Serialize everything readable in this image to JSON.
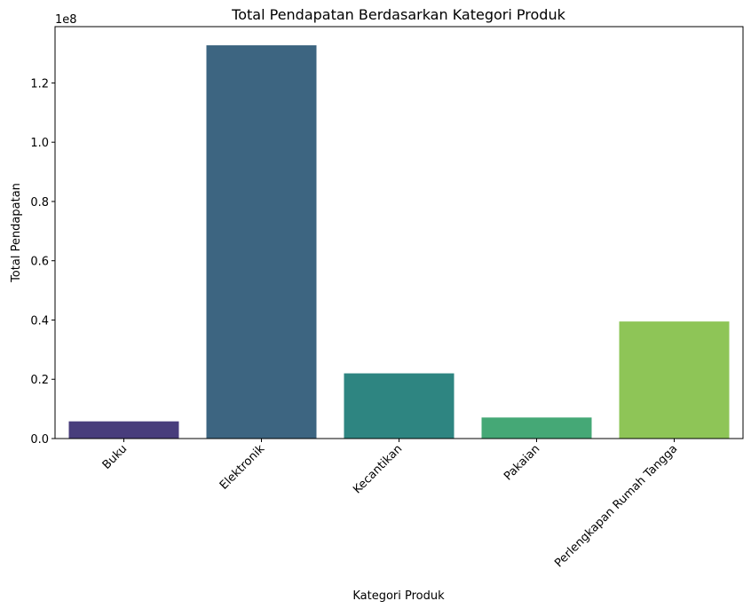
{
  "chart_data": {
    "type": "bar",
    "title": "Total Pendapatan Berdasarkan Kategori Produk",
    "xlabel": "Kategori Produk",
    "ylabel": "Total Pendapatan",
    "y_offset_text": "1e8",
    "categories": [
      "Buku",
      "Elektronik",
      "Kecantikan",
      "Pakaian",
      "Perlengkapan Rumah Tangga"
    ],
    "values": [
      5800000,
      132700000,
      22000000,
      7100000,
      39500000
    ],
    "colors": [
      "#483d7c",
      "#3d6581",
      "#2e8581",
      "#45a876",
      "#8ec557"
    ],
    "ylim": [
      0,
      139000000
    ],
    "yticks": [
      0,
      20000000,
      40000000,
      60000000,
      80000000,
      100000000,
      120000000
    ],
    "ytick_labels": [
      "0.0",
      "0.2",
      "0.4",
      "0.6",
      "0.8",
      "1.0",
      "1.2"
    ],
    "xtick_rotation": 45,
    "grid": false,
    "legend": "none"
  }
}
